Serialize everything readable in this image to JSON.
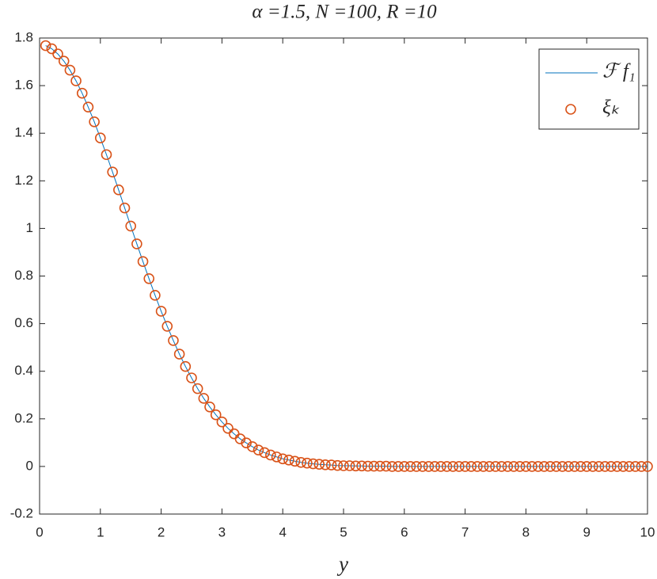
{
  "chart_data": {
    "type": "line",
    "title": "α =1.5, N =100, R =10",
    "x_label": "y",
    "x": [
      0.1,
      0.2,
      0.3,
      0.4,
      0.5,
      0.6,
      0.7,
      0.8,
      0.9,
      1.0,
      1.1,
      1.2,
      1.3,
      1.4,
      1.5,
      1.6,
      1.7,
      1.8,
      1.9,
      2.0,
      2.1,
      2.2,
      2.3,
      2.4,
      2.5,
      2.6,
      2.7,
      2.8,
      2.9,
      3.0,
      3.1,
      3.2,
      3.3,
      3.4,
      3.5,
      3.6,
      3.7,
      3.8,
      3.9,
      4.0,
      4.1,
      4.2,
      4.3,
      4.4,
      4.5,
      4.6,
      4.7,
      4.8,
      4.9,
      5.0,
      5.1,
      5.2,
      5.3,
      5.4,
      5.5,
      5.6,
      5.7,
      5.8,
      5.9,
      6.0,
      6.1,
      6.2,
      6.3,
      6.4,
      6.5,
      6.6,
      6.7,
      6.8,
      6.9,
      7.0,
      7.1,
      7.2,
      7.3,
      7.4,
      7.5,
      7.6,
      7.7,
      7.8,
      7.9,
      8.0,
      8.1,
      8.2,
      8.3,
      8.4,
      8.5,
      8.6,
      8.7,
      8.8,
      8.9,
      9.0,
      9.1,
      9.2,
      9.3,
      9.4,
      9.5,
      9.6,
      9.7,
      9.8,
      9.9,
      10.0
    ],
    "series": [
      {
        "name": "ℱ f₁",
        "style": "line",
        "color": "#0072bd",
        "values": [
          1.768,
          1.755,
          1.733,
          1.703,
          1.665,
          1.62,
          1.568,
          1.51,
          1.448,
          1.38,
          1.31,
          1.237,
          1.162,
          1.086,
          1.01,
          0.935,
          0.861,
          0.789,
          0.719,
          0.652,
          0.589,
          0.529,
          0.472,
          0.42,
          0.372,
          0.327,
          0.286,
          0.25,
          0.217,
          0.187,
          0.16,
          0.137,
          0.116,
          0.099,
          0.083,
          0.069,
          0.058,
          0.048,
          0.04,
          0.032,
          0.027,
          0.022,
          0.017,
          0.014,
          0.011,
          0.009,
          0.007,
          0.006,
          0.004,
          0.003,
          0.003,
          0.002,
          0.002,
          0.001,
          0.001,
          0.001,
          0.001,
          0,
          0,
          0,
          0,
          0,
          0,
          0,
          0,
          0,
          0,
          0,
          0,
          0,
          0,
          0,
          0,
          0,
          0,
          0,
          0,
          0,
          0,
          0,
          0,
          0,
          0,
          0,
          0,
          0,
          0,
          0,
          0,
          0,
          0,
          0,
          0,
          0,
          0,
          0,
          0,
          0,
          0,
          0
        ]
      },
      {
        "name": "ξₖ",
        "style": "marker",
        "color": "#d95319",
        "values": [
          1.768,
          1.755,
          1.733,
          1.703,
          1.665,
          1.62,
          1.568,
          1.51,
          1.448,
          1.38,
          1.31,
          1.237,
          1.162,
          1.086,
          1.01,
          0.935,
          0.861,
          0.789,
          0.719,
          0.652,
          0.589,
          0.529,
          0.472,
          0.42,
          0.372,
          0.327,
          0.286,
          0.25,
          0.217,
          0.187,
          0.16,
          0.137,
          0.116,
          0.099,
          0.083,
          0.069,
          0.058,
          0.048,
          0.04,
          0.032,
          0.027,
          0.022,
          0.017,
          0.014,
          0.011,
          0.009,
          0.007,
          0.006,
          0.004,
          0.003,
          0.003,
          0.002,
          0.002,
          0.001,
          0.001,
          0.001,
          0.001,
          0,
          0,
          0,
          0,
          0,
          0,
          0,
          0,
          0,
          0,
          0,
          0,
          0,
          0,
          0,
          0,
          0,
          0,
          0,
          0,
          0,
          0,
          0,
          0,
          0,
          0,
          0,
          0,
          0,
          0,
          0,
          0,
          0,
          0,
          0,
          0,
          0,
          0,
          0,
          0,
          0,
          0,
          0
        ]
      }
    ],
    "xlim": [
      0,
      10
    ],
    "xticks": [
      0,
      1,
      2,
      3,
      4,
      5,
      6,
      7,
      8,
      9,
      10
    ],
    "ylim": [
      -0.2,
      1.8
    ],
    "yticks": [
      -0.2,
      0,
      0.2,
      0.4,
      0.6,
      0.8,
      1,
      1.2,
      1.4,
      1.6,
      1.8
    ],
    "grid": false,
    "legend": "northeast"
  }
}
